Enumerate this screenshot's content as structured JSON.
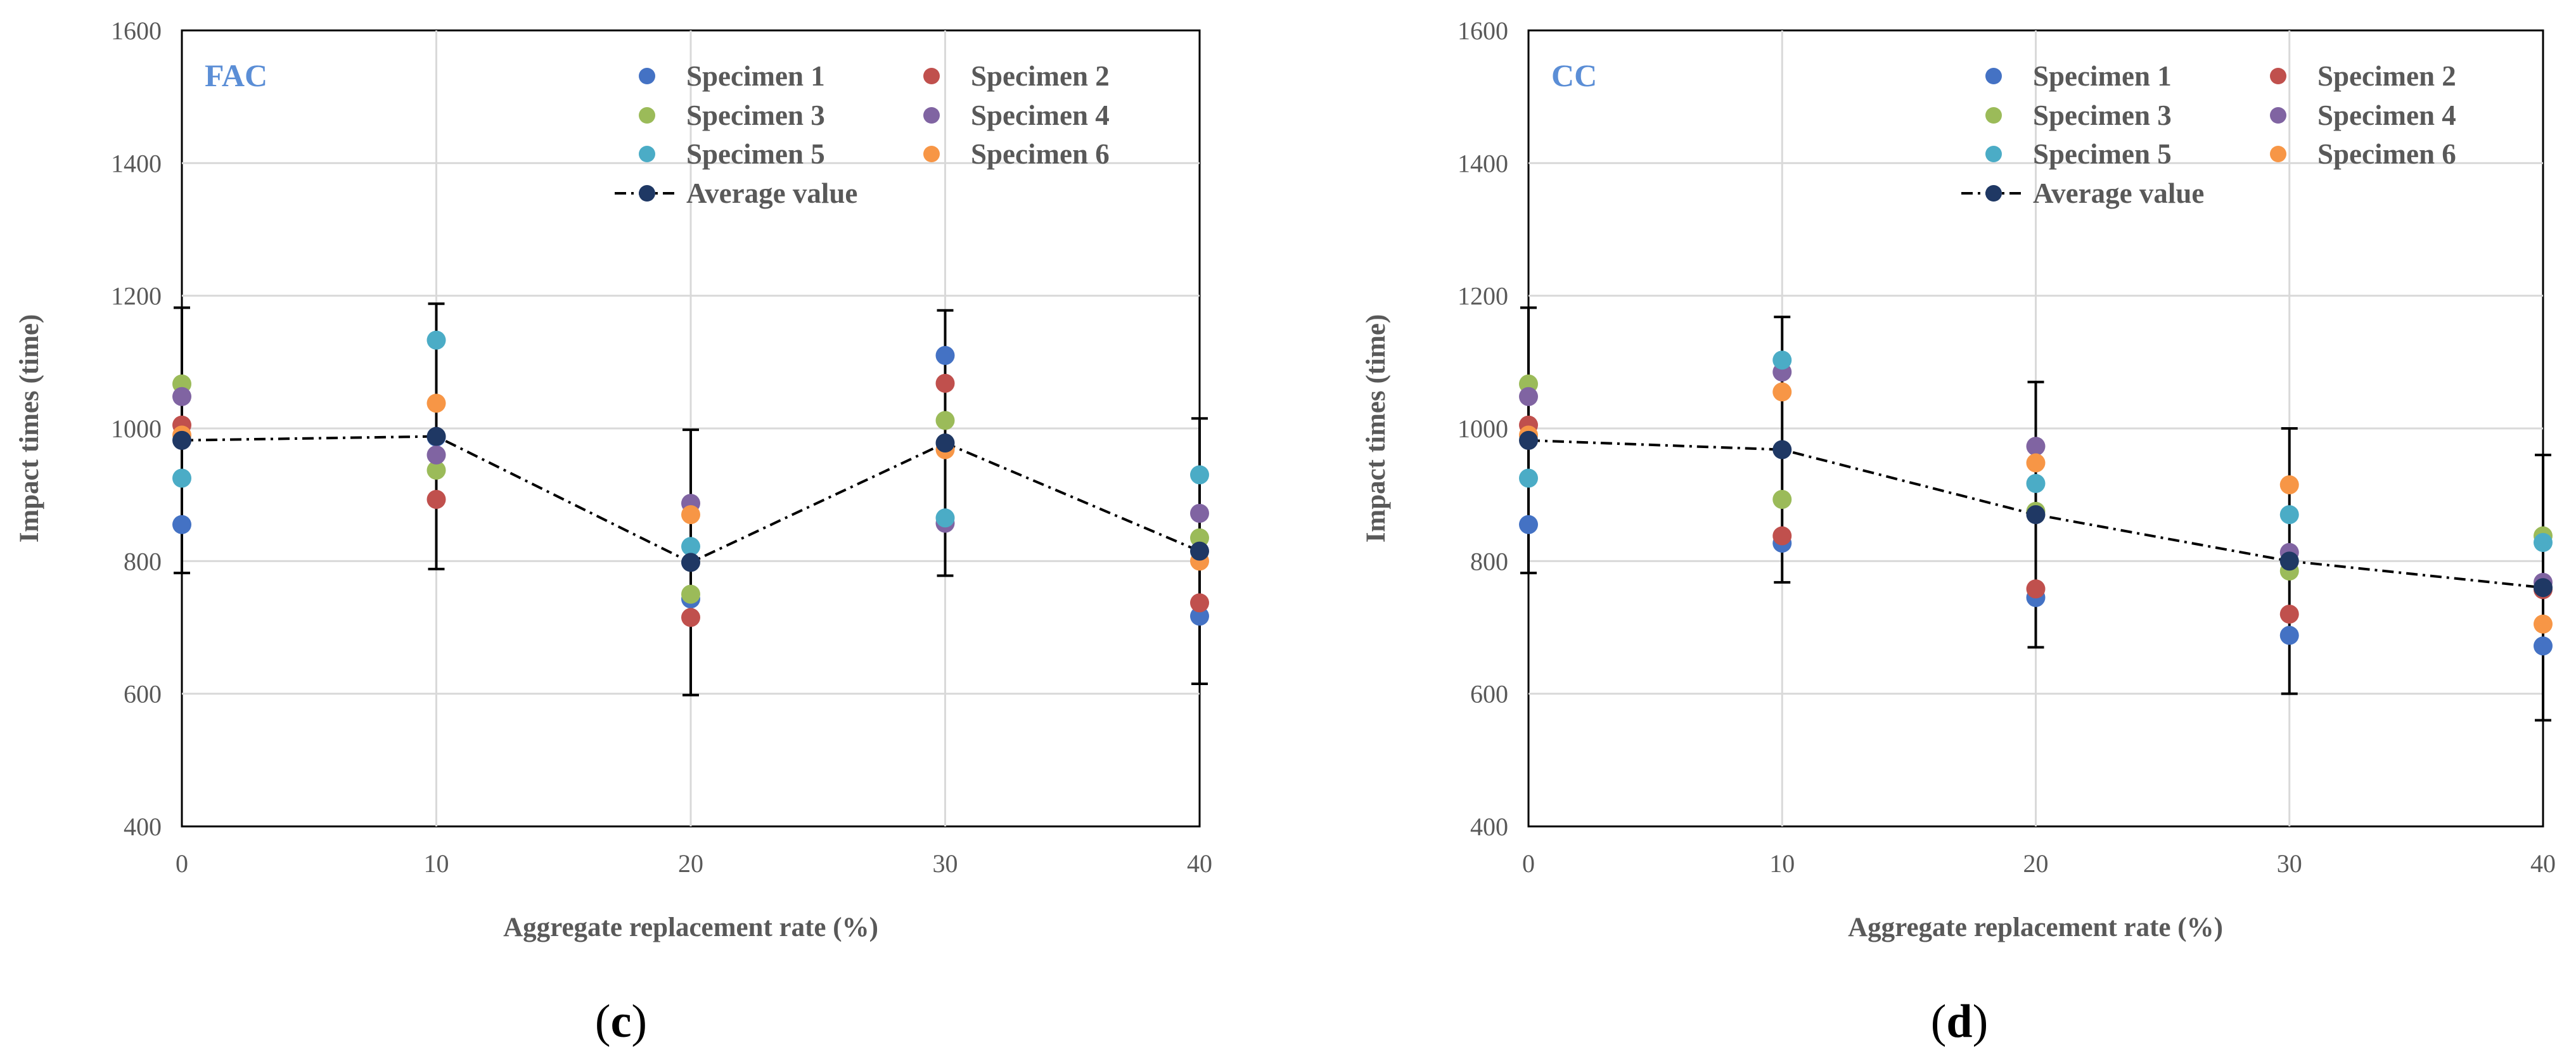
{
  "colors": {
    "specimen_1": "#4472c4",
    "specimen_2": "#c0504d",
    "specimen_3": "#9bbb59",
    "specimen_4": "#8064a2",
    "specimen_5": "#4bacc6",
    "specimen_6": "#f79646",
    "average": "#1f3864",
    "panel_tag": "#5b8ed6"
  },
  "chart_data": [
    {
      "type": "scatter",
      "panel_tag": "FAC",
      "subfigure": {
        "open": "(",
        "letter": "c",
        "close": ")"
      },
      "xlabel": "Aggregate replacement rate (%)",
      "ylabel": "Impact times (time)",
      "x": [
        0,
        10,
        20,
        30,
        40
      ],
      "x_ticks": [
        "0",
        "10",
        "20",
        "30",
        "40"
      ],
      "xlim": [
        0,
        40
      ],
      "ylim": [
        400,
        1600
      ],
      "y_ticks": [
        "400",
        "600",
        "800",
        "1000",
        "1200",
        "1400",
        "1600"
      ],
      "grid": true,
      "legend_position": "top-right",
      "series": [
        {
          "name": "Specimen 1",
          "key": "specimen_1",
          "values": [
            855,
            987,
            743,
            1110,
            717
          ]
        },
        {
          "name": "Specimen 2",
          "key": "specimen_2",
          "values": [
            1005,
            893,
            715,
            1068,
            737
          ]
        },
        {
          "name": "Specimen 3",
          "key": "specimen_3",
          "values": [
            1067,
            937,
            750,
            1012,
            835
          ]
        },
        {
          "name": "Specimen 4",
          "key": "specimen_4",
          "values": [
            1048,
            960,
            887,
            857,
            872
          ]
        },
        {
          "name": "Specimen 5",
          "key": "specimen_5",
          "values": [
            925,
            1133,
            822,
            865,
            930
          ]
        },
        {
          "name": "Specimen 6",
          "key": "specimen_6",
          "values": [
            990,
            1038,
            870,
            968,
            800
          ]
        }
      ],
      "average": {
        "name": "Average value",
        "values": [
          982,
          988,
          798,
          978,
          815
        ],
        "error": [
          200,
          200,
          200,
          200,
          200
        ]
      }
    },
    {
      "type": "scatter",
      "panel_tag": "CC",
      "subfigure": {
        "open": "(",
        "letter": "d",
        "close": ")"
      },
      "xlabel": "Aggregate replacement rate (%)",
      "ylabel": "Impact times (time)",
      "x": [
        0,
        10,
        20,
        30,
        40
      ],
      "x_ticks": [
        "0",
        "10",
        "20",
        "30",
        "40"
      ],
      "xlim": [
        0,
        40
      ],
      "ylim": [
        400,
        1600
      ],
      "y_ticks": [
        "400",
        "600",
        "800",
        "1000",
        "1200",
        "1400",
        "1600"
      ],
      "grid": true,
      "legend_position": "top-right",
      "series": [
        {
          "name": "Specimen 1",
          "key": "specimen_1",
          "values": [
            855,
            827,
            745,
            688,
            672
          ]
        },
        {
          "name": "Specimen 2",
          "key": "specimen_2",
          "values": [
            1005,
            838,
            758,
            720,
            757
          ]
        },
        {
          "name": "Specimen 3",
          "key": "specimen_3",
          "values": [
            1067,
            893,
            875,
            785,
            838
          ]
        },
        {
          "name": "Specimen 4",
          "key": "specimen_4",
          "values": [
            1048,
            1085,
            973,
            813,
            768
          ]
        },
        {
          "name": "Specimen 5",
          "key": "specimen_5",
          "values": [
            925,
            1103,
            917,
            870,
            828
          ]
        },
        {
          "name": "Specimen 6",
          "key": "specimen_6",
          "values": [
            990,
            1055,
            948,
            915,
            705
          ]
        }
      ],
      "average": {
        "name": "Average value",
        "values": [
          982,
          968,
          870,
          800,
          760
        ],
        "error": [
          200,
          200,
          200,
          200,
          200
        ]
      }
    }
  ]
}
